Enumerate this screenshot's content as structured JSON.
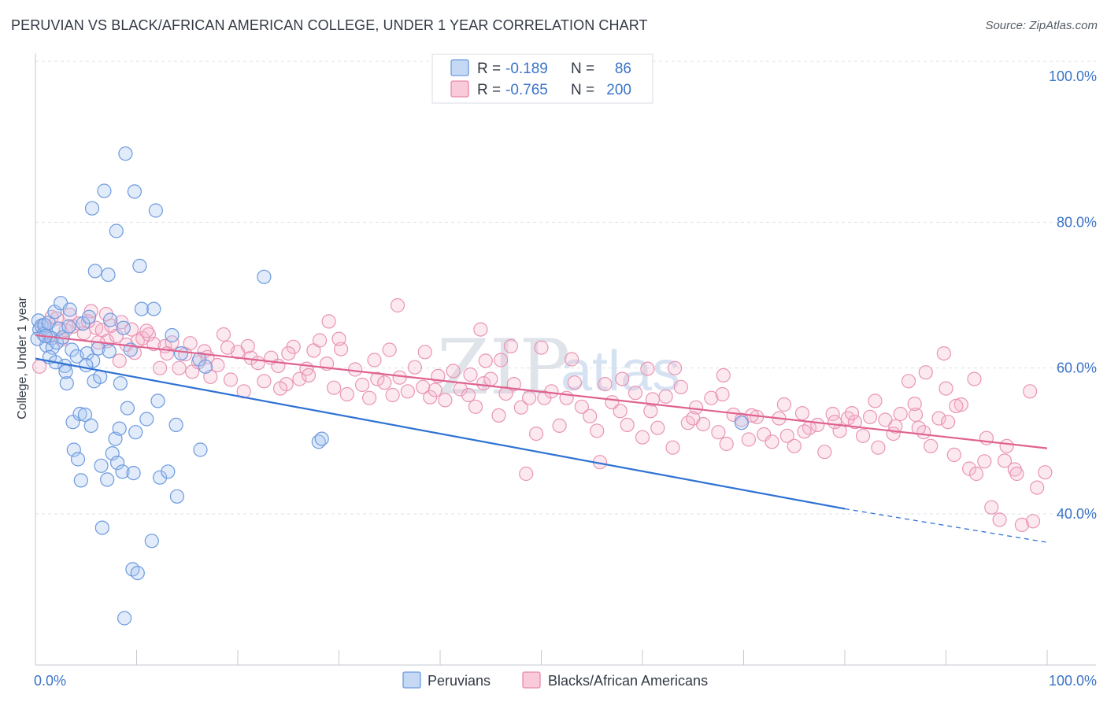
{
  "title": "PERUVIAN VS BLACK/AFRICAN AMERICAN COLLEGE, UNDER 1 YEAR CORRELATION CHART",
  "source": "Source: ZipAtlas.com",
  "watermark": {
    "zip": "ZIP",
    "atlas": "atlas"
  },
  "colors": {
    "peruvian": "#4a86dd",
    "black": "#e8709a",
    "tick": "#3b73c8"
  },
  "stats": [
    {
      "r_label": "R =",
      "r": "-0.189",
      "n_label": "N =",
      "n": "86"
    },
    {
      "r_label": "R =",
      "r": "-0.765",
      "n_label": "N =",
      "n": "200"
    }
  ],
  "legend": [
    "Peruvians",
    "Blacks/African Americans"
  ],
  "chart_data": {
    "type": "scatter",
    "ylabel": "College, Under 1 year",
    "xlim": [
      0,
      100
    ],
    "ylim": [
      20,
      100
    ],
    "x_tick_labels": [
      "0.0%",
      "100.0%"
    ],
    "y_ticks": [
      100,
      80,
      60,
      40
    ],
    "y_tick_labels": [
      "100.0%",
      "80.0%",
      "60.0%",
      "40.0%"
    ],
    "grid": true,
    "legend_position": "bottom-center",
    "series": [
      {
        "name": "Peruvians",
        "trend": {
          "x0": 0,
          "y0": 61.3,
          "x1": 80,
          "y1": 40.7,
          "dashed_to_x": 100,
          "dashed_to_y": 36.1
        },
        "points": [
          [
            0.3,
            66.5
          ],
          [
            0.4,
            65.3
          ],
          [
            0.6,
            65.8
          ],
          [
            0.8,
            64.6
          ],
          [
            0.9,
            65.9
          ],
          [
            1.1,
            63.1
          ],
          [
            1.3,
            66.2
          ],
          [
            1.6,
            64.1
          ],
          [
            1.7,
            62.8
          ],
          [
            1.9,
            67.7
          ],
          [
            2.1,
            63.5
          ],
          [
            2.3,
            65.4
          ],
          [
            2.5,
            68.9
          ],
          [
            2.7,
            64.2
          ],
          [
            2.9,
            60.3
          ],
          [
            3.1,
            57.9
          ],
          [
            3.3,
            65.7
          ],
          [
            3.4,
            68.0
          ],
          [
            3.6,
            62.5
          ],
          [
            3.7,
            52.6
          ],
          [
            3.8,
            48.8
          ],
          [
            4.1,
            61.6
          ],
          [
            4.2,
            47.5
          ],
          [
            4.4,
            53.7
          ],
          [
            4.5,
            44.6
          ],
          [
            4.7,
            66.1
          ],
          [
            4.9,
            53.6
          ],
          [
            5.1,
            62.0
          ],
          [
            5.3,
            67.0
          ],
          [
            5.5,
            52.1
          ],
          [
            5.6,
            81.9
          ],
          [
            5.7,
            61.0
          ],
          [
            5.8,
            58.2
          ],
          [
            5.9,
            73.3
          ],
          [
            6.2,
            62.7
          ],
          [
            6.4,
            58.8
          ],
          [
            6.5,
            46.6
          ],
          [
            6.6,
            38.1
          ],
          [
            6.8,
            84.3
          ],
          [
            7.1,
            44.7
          ],
          [
            7.2,
            72.8
          ],
          [
            7.3,
            62.3
          ],
          [
            7.4,
            66.6
          ],
          [
            7.6,
            48.3
          ],
          [
            7.9,
            50.3
          ],
          [
            8.0,
            78.8
          ],
          [
            8.1,
            47.0
          ],
          [
            8.3,
            51.7
          ],
          [
            8.4,
            57.9
          ],
          [
            8.6,
            45.8
          ],
          [
            8.7,
            65.5
          ],
          [
            8.8,
            25.7
          ],
          [
            8.9,
            89.4
          ],
          [
            9.1,
            54.5
          ],
          [
            9.4,
            62.5
          ],
          [
            9.6,
            32.4
          ],
          [
            9.7,
            45.6
          ],
          [
            9.8,
            84.2
          ],
          [
            9.9,
            51.2
          ],
          [
            10.1,
            31.9
          ],
          [
            10.3,
            74.0
          ],
          [
            10.5,
            68.1
          ],
          [
            11.0,
            53.0
          ],
          [
            11.5,
            36.3
          ],
          [
            11.7,
            68.1
          ],
          [
            11.9,
            81.6
          ],
          [
            12.1,
            55.5
          ],
          [
            12.3,
            45.0
          ],
          [
            13.1,
            45.8
          ],
          [
            13.5,
            64.5
          ],
          [
            13.9,
            52.2
          ],
          [
            14.0,
            42.4
          ],
          [
            14.4,
            62.0
          ],
          [
            16.2,
            61.2
          ],
          [
            16.3,
            48.8
          ],
          [
            16.8,
            60.2
          ],
          [
            22.6,
            72.5
          ],
          [
            28.0,
            49.9
          ],
          [
            28.3,
            50.3
          ],
          [
            69.8,
            52.5
          ],
          [
            0.2,
            64.0
          ],
          [
            1.4,
            61.5
          ],
          [
            2.0,
            60.8
          ],
          [
            3.0,
            59.5
          ],
          [
            1.0,
            64.4
          ],
          [
            5.0,
            60.4
          ]
        ]
      },
      {
        "name": "Blacks/African Americans",
        "trend": {
          "x0": 0,
          "y0": 64.5,
          "x1": 100,
          "y1": 49.0
        },
        "points": [
          [
            0.4,
            60.2
          ],
          [
            0.8,
            65.9
          ],
          [
            1.3,
            64.3
          ],
          [
            1.6,
            67.0
          ],
          [
            2.1,
            66.8
          ],
          [
            2.6,
            63.9
          ],
          [
            3.0,
            65.2
          ],
          [
            3.4,
            67.3
          ],
          [
            3.7,
            65.7
          ],
          [
            4.3,
            66.1
          ],
          [
            4.8,
            64.8
          ],
          [
            5.5,
            67.8
          ],
          [
            6.0,
            65.5
          ],
          [
            6.6,
            65.2
          ],
          [
            7.1,
            63.7
          ],
          [
            7.5,
            65.8
          ],
          [
            8.0,
            64.4
          ],
          [
            8.5,
            66.3
          ],
          [
            9.0,
            63.2
          ],
          [
            9.5,
            65.3
          ],
          [
            10.1,
            63.7
          ],
          [
            10.6,
            64.1
          ],
          [
            11.2,
            64.6
          ],
          [
            11.7,
            63.3
          ],
          [
            12.3,
            60.0
          ],
          [
            12.8,
            63.0
          ],
          [
            13.5,
            63.5
          ],
          [
            14.2,
            60.0
          ],
          [
            14.8,
            61.9
          ],
          [
            15.3,
            63.4
          ],
          [
            16.1,
            60.8
          ],
          [
            16.7,
            62.3
          ],
          [
            17.3,
            58.8
          ],
          [
            18.0,
            60.4
          ],
          [
            18.6,
            64.6
          ],
          [
            19.3,
            58.4
          ],
          [
            20.0,
            62.2
          ],
          [
            20.6,
            56.8
          ],
          [
            21.3,
            61.4
          ],
          [
            22.0,
            60.7
          ],
          [
            22.6,
            58.2
          ],
          [
            23.3,
            61.4
          ],
          [
            24.0,
            60.3
          ],
          [
            24.8,
            57.8
          ],
          [
            25.5,
            62.9
          ],
          [
            26.1,
            58.5
          ],
          [
            26.8,
            59.9
          ],
          [
            27.5,
            62.4
          ],
          [
            28.1,
            63.8
          ],
          [
            28.8,
            60.6
          ],
          [
            29.5,
            57.3
          ],
          [
            30.2,
            62.6
          ],
          [
            30.8,
            56.4
          ],
          [
            31.6,
            59.8
          ],
          [
            32.3,
            57.7
          ],
          [
            33.0,
            55.9
          ],
          [
            33.8,
            58.5
          ],
          [
            34.5,
            58.0
          ],
          [
            35.3,
            56.3
          ],
          [
            36.0,
            58.7
          ],
          [
            36.8,
            56.8
          ],
          [
            37.5,
            60.1
          ],
          [
            38.3,
            57.4
          ],
          [
            39.0,
            56.0
          ],
          [
            39.8,
            58.9
          ],
          [
            40.5,
            55.6
          ],
          [
            41.3,
            59.6
          ],
          [
            42.0,
            57.1
          ],
          [
            42.8,
            56.3
          ],
          [
            43.5,
            54.7
          ],
          [
            44.3,
            57.9
          ],
          [
            45.0,
            58.5
          ],
          [
            45.8,
            53.5
          ],
          [
            46.5,
            56.5
          ],
          [
            47.3,
            57.8
          ],
          [
            48.0,
            54.6
          ],
          [
            48.8,
            55.9
          ],
          [
            49.5,
            51.0
          ],
          [
            50.3,
            55.9
          ],
          [
            51.0,
            56.8
          ],
          [
            51.8,
            52.1
          ],
          [
            52.5,
            55.9
          ],
          [
            53.3,
            58.0
          ],
          [
            54.0,
            54.7
          ],
          [
            54.8,
            53.4
          ],
          [
            55.5,
            51.4
          ],
          [
            56.3,
            57.8
          ],
          [
            57.0,
            55.3
          ],
          [
            57.8,
            54.1
          ],
          [
            58.5,
            52.2
          ],
          [
            59.3,
            56.6
          ],
          [
            60.0,
            50.5
          ],
          [
            60.8,
            54.1
          ],
          [
            61.5,
            51.8
          ],
          [
            62.3,
            56.1
          ],
          [
            63.0,
            49.1
          ],
          [
            63.8,
            57.4
          ],
          [
            64.5,
            52.5
          ],
          [
            65.3,
            54.6
          ],
          [
            66.0,
            52.3
          ],
          [
            66.8,
            55.9
          ],
          [
            67.5,
            51.2
          ],
          [
            68.3,
            49.6
          ],
          [
            69.0,
            53.6
          ],
          [
            69.8,
            52.9
          ],
          [
            70.5,
            50.2
          ],
          [
            71.3,
            53.3
          ],
          [
            72.0,
            50.9
          ],
          [
            72.8,
            49.9
          ],
          [
            73.5,
            53.1
          ],
          [
            74.3,
            50.7
          ],
          [
            75.0,
            49.3
          ],
          [
            75.8,
            53.8
          ],
          [
            76.5,
            51.8
          ],
          [
            77.3,
            52.2
          ],
          [
            78.0,
            48.5
          ],
          [
            78.8,
            53.7
          ],
          [
            79.5,
            51.4
          ],
          [
            80.3,
            53.1
          ],
          [
            81.0,
            52.6
          ],
          [
            81.8,
            50.7
          ],
          [
            82.5,
            53.3
          ],
          [
            83.3,
            49.1
          ],
          [
            84.0,
            52.9
          ],
          [
            84.8,
            51.0
          ],
          [
            85.5,
            53.7
          ],
          [
            86.3,
            58.2
          ],
          [
            87.0,
            53.6
          ],
          [
            87.8,
            51.2
          ],
          [
            88.5,
            49.3
          ],
          [
            89.3,
            53.1
          ],
          [
            90.0,
            57.2
          ],
          [
            90.8,
            48.1
          ],
          [
            91.5,
            55.0
          ],
          [
            92.3,
            46.2
          ],
          [
            93.0,
            45.5
          ],
          [
            93.8,
            47.2
          ],
          [
            94.5,
            40.9
          ],
          [
            95.3,
            39.2
          ],
          [
            96.0,
            49.3
          ],
          [
            96.8,
            46.1
          ],
          [
            97.5,
            38.5
          ],
          [
            98.3,
            56.8
          ],
          [
            99.0,
            43.6
          ],
          [
            99.8,
            45.7
          ],
          [
            89.8,
            62.0
          ],
          [
            88.0,
            59.4
          ],
          [
            92.8,
            58.5
          ],
          [
            68.0,
            59.0
          ],
          [
            63.2,
            60.0
          ],
          [
            58.0,
            58.5
          ],
          [
            50.0,
            62.8
          ],
          [
            47.0,
            63.0
          ],
          [
            44.5,
            61.0
          ],
          [
            38.5,
            62.2
          ],
          [
            35.0,
            62.5
          ],
          [
            30.0,
            64.0
          ],
          [
            27.0,
            59.0
          ],
          [
            25.0,
            62.0
          ],
          [
            21.0,
            63.0
          ],
          [
            19.0,
            62.8
          ],
          [
            17.0,
            61.5
          ],
          [
            15.5,
            59.5
          ],
          [
            13.0,
            62.0
          ],
          [
            11.0,
            65.1
          ],
          [
            9.8,
            62.1
          ],
          [
            8.3,
            61.0
          ],
          [
            7.0,
            67.4
          ],
          [
            6.2,
            63.5
          ],
          [
            5.2,
            66.4
          ],
          [
            44.0,
            65.3
          ],
          [
            39.5,
            57.0
          ],
          [
            43.0,
            59.1
          ],
          [
            46.0,
            61.1
          ],
          [
            55.8,
            47.1
          ],
          [
            48.5,
            45.5
          ],
          [
            35.8,
            68.6
          ],
          [
            29.0,
            66.4
          ],
          [
            24.2,
            57.2
          ],
          [
            33.5,
            61.1
          ],
          [
            53.0,
            61.2
          ],
          [
            61.0,
            55.7
          ],
          [
            65.0,
            53.1
          ],
          [
            70.8,
            53.5
          ],
          [
            74.0,
            55.0
          ],
          [
            76.0,
            51.3
          ],
          [
            79.0,
            52.6
          ],
          [
            83.0,
            55.5
          ],
          [
            85.0,
            52.0
          ],
          [
            87.3,
            51.8
          ],
          [
            91.0,
            54.8
          ],
          [
            94.0,
            50.4
          ],
          [
            95.8,
            47.3
          ],
          [
            97.0,
            45.5
          ],
          [
            98.6,
            39.0
          ],
          [
            90.2,
            52.6
          ],
          [
            86.9,
            55.1
          ],
          [
            80.7,
            53.8
          ],
          [
            67.9,
            56.4
          ],
          [
            60.5,
            59.9
          ]
        ]
      }
    ]
  }
}
